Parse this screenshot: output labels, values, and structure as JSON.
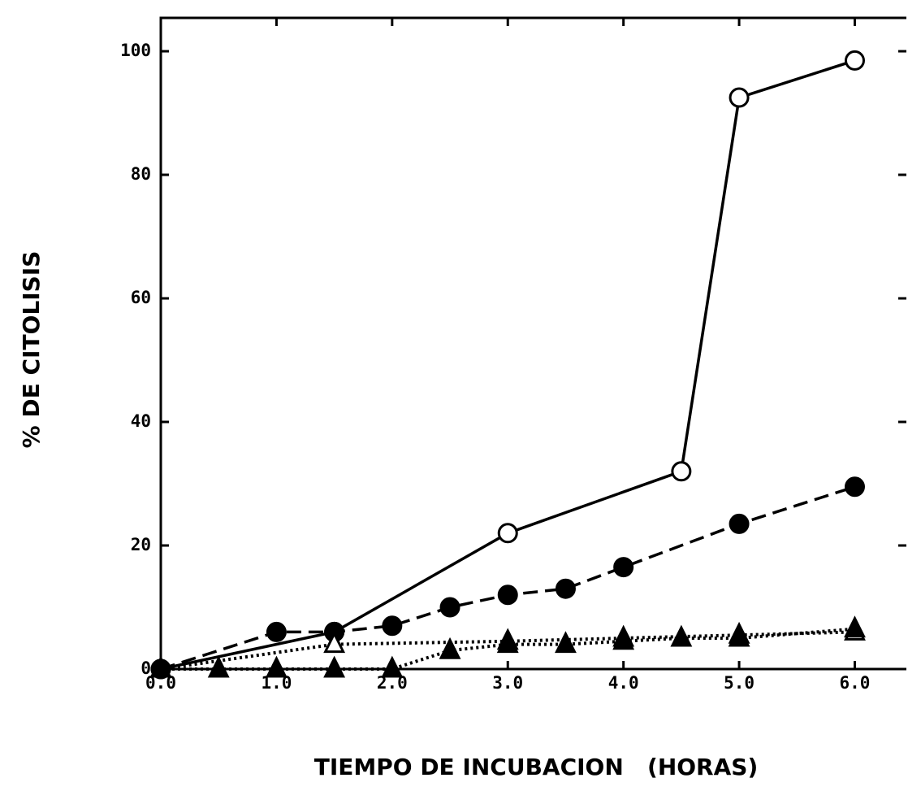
{
  "chart_data": {
    "type": "line",
    "xlabel": "TIEMPO DE INCUBACION   (HORAS)",
    "ylabel": "% DE CITOLISIS",
    "xlim": [
      0,
      6.46
    ],
    "ylim": [
      0,
      105.4
    ],
    "xticks": [
      {
        "value": 0,
        "label": "0.0"
      },
      {
        "value": 1,
        "label": "1.0"
      },
      {
        "value": 2,
        "label": "2.0"
      },
      {
        "value": 3,
        "label": "3.0"
      },
      {
        "value": 4,
        "label": "4.0"
      },
      {
        "value": 5,
        "label": "5.0"
      },
      {
        "value": 6,
        "label": "6.0"
      }
    ],
    "yticks": [
      0,
      20,
      40,
      60,
      80,
      100
    ],
    "series": [
      {
        "color": "#000000",
        "line": "solid",
        "marker": "open-circle",
        "x": [
          0,
          1.5,
          3,
          4.5,
          5,
          6
        ],
        "values": [
          0,
          6,
          22,
          32,
          92.5,
          98.5
        ]
      },
      {
        "color": "#000000",
        "line": "dashed",
        "marker": "filled-circle",
        "x": [
          0,
          1,
          1.5,
          2,
          2.5,
          3,
          3.5,
          4,
          5,
          6
        ],
        "values": [
          0,
          6,
          6,
          7,
          10,
          12,
          13,
          16.5,
          23.5,
          29.5
        ]
      },
      {
        "color": "#000000",
        "line": "dotted",
        "marker": "open-triangle",
        "x": [
          0,
          1.5,
          3,
          4,
          5,
          6
        ],
        "values": [
          0,
          4,
          4.5,
          5,
          5.5,
          6
        ]
      },
      {
        "color": "#000000",
        "line": "dotted",
        "marker": "filled-triangle",
        "x": [
          0,
          0.5,
          1,
          1.5,
          2,
          2.5,
          3,
          3.5,
          4,
          4.5,
          5,
          6
        ],
        "values": [
          0,
          0,
          0,
          0,
          0,
          3,
          4,
          4,
          4.5,
          5,
          5,
          6.5
        ]
      }
    ]
  }
}
